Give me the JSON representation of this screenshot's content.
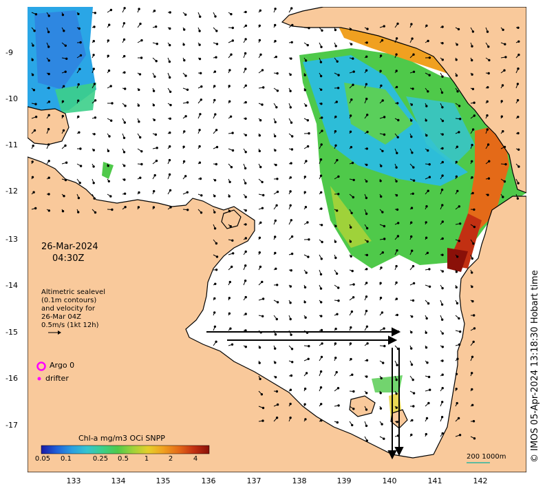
{
  "map": {
    "date": "26-Mar-2024",
    "time": "04:30Z",
    "altimetry_lines": [
      "Altimetric sealevel",
      "(0.1m contours)",
      "and velocity for",
      "26-Mar 04Z",
      "0.5m/s (1kt 12h)"
    ],
    "legend": {
      "argo_label": "Argo 0",
      "drifter_label": "drifter",
      "argo_color": "#ff00ff",
      "drifter_color": "#ff00ff"
    },
    "colorbar": {
      "title": "Chl-a mg/m3 OCi SNPP",
      "ticks": [
        "0.05",
        "0.1",
        "0.25",
        "0.5",
        "1",
        "2",
        "4"
      ],
      "colors": [
        "#1a1aa6",
        "#1f5fd8",
        "#2b9ee0",
        "#36c4cf",
        "#3ccf8a",
        "#4fc94a",
        "#9fd23a",
        "#e5cf2a",
        "#f0a020",
        "#e46a18",
        "#c23012",
        "#8a1008"
      ]
    },
    "scale_bar": {
      "label": "200  1000m"
    },
    "credit": "© IMOS 05-Apr-2024 13:18:30 Hobart time",
    "y_ticks": [
      "-9",
      "-10",
      "-11",
      "-12",
      "-13",
      "-14",
      "-15",
      "-16",
      "-17"
    ],
    "x_ticks": [
      "133",
      "134",
      "135",
      "136",
      "137",
      "138",
      "139",
      "140",
      "141",
      "142"
    ],
    "colors": {
      "land": "#f9c99b",
      "sea": "#ffffff",
      "coast": "#000000"
    }
  }
}
